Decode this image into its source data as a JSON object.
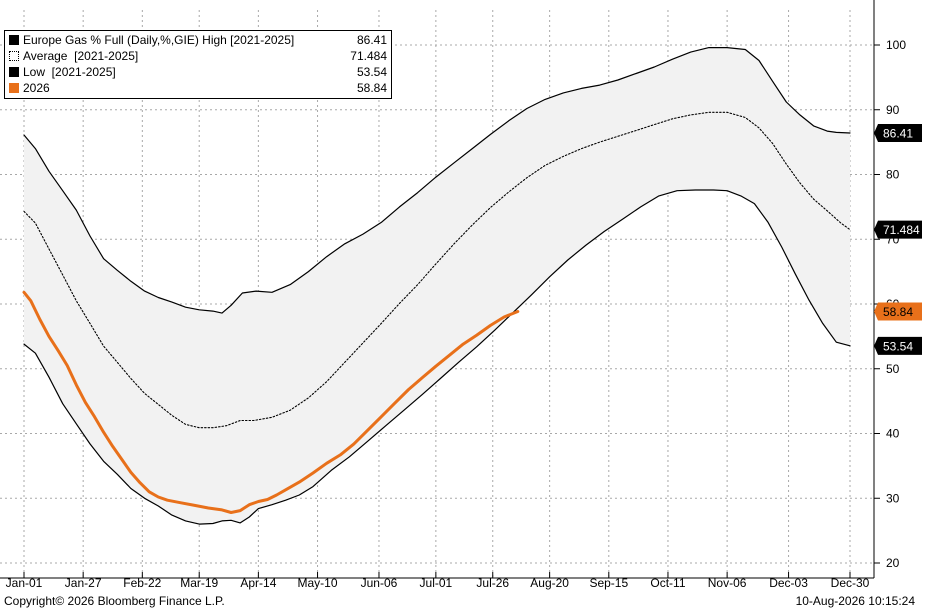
{
  "chart_data": {
    "type": "line",
    "title": "",
    "xlabel": "",
    "ylabel": "",
    "ylim": [
      20,
      102
    ],
    "x_tick_labels": [
      "Jan-01",
      "Jan-27",
      "Feb-22",
      "Mar-19",
      "Apr-14",
      "May-10",
      "Jun-06",
      "Jul-01",
      "Jul-26",
      "Aug-20",
      "Sep-15",
      "Oct-11",
      "Nov-06",
      "Dec-03",
      "Dec-30"
    ],
    "x_tick_days": [
      1,
      27,
      53,
      78,
      104,
      130,
      157,
      182,
      207,
      232,
      258,
      284,
      310,
      337,
      364
    ],
    "y_ticks": [
      20,
      30,
      40,
      50,
      60,
      70,
      80,
      90,
      100
    ],
    "grid": true,
    "legend_position": "top-left",
    "series": [
      {
        "name": "Europe Gas % Full (Daily,%,GIE) High [2021-2025]",
        "last_value": "86.41",
        "color": "#000000",
        "style": "solid",
        "points": [
          [
            1,
            86.1
          ],
          [
            6,
            84
          ],
          [
            12,
            80.5
          ],
          [
            18,
            77.5
          ],
          [
            24,
            74.5
          ],
          [
            30,
            70.5
          ],
          [
            36,
            67
          ],
          [
            42,
            65.2
          ],
          [
            48,
            63.5
          ],
          [
            54,
            62
          ],
          [
            60,
            61
          ],
          [
            66,
            60.3
          ],
          [
            72,
            59.5
          ],
          [
            78,
            59.1
          ],
          [
            84,
            58.9
          ],
          [
            88,
            58.6
          ],
          [
            92,
            59.8
          ],
          [
            97,
            61.7
          ],
          [
            103,
            62
          ],
          [
            110,
            61.8
          ],
          [
            118,
            63
          ],
          [
            126,
            65
          ],
          [
            134,
            67.3
          ],
          [
            142,
            69.3
          ],
          [
            150,
            70.8
          ],
          [
            158,
            72.6
          ],
          [
            166,
            75
          ],
          [
            174,
            77.2
          ],
          [
            182,
            79.6
          ],
          [
            190,
            81.8
          ],
          [
            198,
            84
          ],
          [
            206,
            86.2
          ],
          [
            214,
            88.3
          ],
          [
            222,
            90.2
          ],
          [
            230,
            91.6
          ],
          [
            238,
            92.6
          ],
          [
            246,
            93.3
          ],
          [
            254,
            93.8
          ],
          [
            262,
            94.6
          ],
          [
            270,
            95.6
          ],
          [
            278,
            96.6
          ],
          [
            286,
            97.8
          ],
          [
            294,
            98.9
          ],
          [
            302,
            99.6
          ],
          [
            310,
            99.6
          ],
          [
            318,
            99.3
          ],
          [
            324,
            97.6
          ],
          [
            330,
            94.4
          ],
          [
            336,
            91.2
          ],
          [
            342,
            89.2
          ],
          [
            348,
            87.5
          ],
          [
            354,
            86.7
          ],
          [
            358,
            86.5
          ],
          [
            364,
            86.41
          ]
        ]
      },
      {
        "name": "Average  [2021-2025]",
        "last_value": "71.484",
        "color": "#000000",
        "style": "dotted",
        "points": [
          [
            1,
            74.3
          ],
          [
            6,
            72.5
          ],
          [
            12,
            68.5
          ],
          [
            18,
            64.5
          ],
          [
            24,
            60.5
          ],
          [
            30,
            57
          ],
          [
            36,
            53.5
          ],
          [
            42,
            51
          ],
          [
            48,
            48.5
          ],
          [
            54,
            46.2
          ],
          [
            60,
            44.5
          ],
          [
            66,
            42.8
          ],
          [
            72,
            41.4
          ],
          [
            78,
            40.9
          ],
          [
            84,
            40.9
          ],
          [
            90,
            41.2
          ],
          [
            96,
            42
          ],
          [
            102,
            42
          ],
          [
            110,
            42.5
          ],
          [
            118,
            43.6
          ],
          [
            126,
            45.5
          ],
          [
            134,
            48
          ],
          [
            142,
            51
          ],
          [
            150,
            54
          ],
          [
            158,
            57
          ],
          [
            166,
            60.1
          ],
          [
            174,
            63
          ],
          [
            182,
            66.2
          ],
          [
            190,
            69.3
          ],
          [
            198,
            72.2
          ],
          [
            206,
            74.9
          ],
          [
            214,
            77.3
          ],
          [
            222,
            79.5
          ],
          [
            230,
            81.4
          ],
          [
            238,
            82.8
          ],
          [
            246,
            84
          ],
          [
            254,
            85
          ],
          [
            262,
            85.9
          ],
          [
            270,
            86.8
          ],
          [
            278,
            87.7
          ],
          [
            286,
            88.6
          ],
          [
            294,
            89.2
          ],
          [
            302,
            89.6
          ],
          [
            310,
            89.6
          ],
          [
            318,
            88.8
          ],
          [
            324,
            87.2
          ],
          [
            330,
            84.8
          ],
          [
            336,
            81.6
          ],
          [
            342,
            78.7
          ],
          [
            348,
            76.2
          ],
          [
            354,
            74.4
          ],
          [
            360,
            72.5
          ],
          [
            364,
            71.484
          ]
        ]
      },
      {
        "name": "Low  [2021-2025]",
        "last_value": "53.54",
        "color": "#000000",
        "style": "solid",
        "points": [
          [
            1,
            53.8
          ],
          [
            6,
            52.4
          ],
          [
            12,
            48.7
          ],
          [
            18,
            44.6
          ],
          [
            24,
            41.5
          ],
          [
            30,
            38.4
          ],
          [
            36,
            35.7
          ],
          [
            42,
            33.7
          ],
          [
            48,
            31.5
          ],
          [
            54,
            30
          ],
          [
            60,
            28.8
          ],
          [
            66,
            27.4
          ],
          [
            72,
            26.5
          ],
          [
            78,
            26
          ],
          [
            84,
            26.1
          ],
          [
            88,
            26.5
          ],
          [
            92,
            26.6
          ],
          [
            96,
            26.2
          ],
          [
            100,
            27.1
          ],
          [
            104,
            28.4
          ],
          [
            110,
            29
          ],
          [
            116,
            29.7
          ],
          [
            122,
            30.5
          ],
          [
            128,
            31.8
          ],
          [
            136,
            34.3
          ],
          [
            144,
            36.4
          ],
          [
            152,
            38.8
          ],
          [
            160,
            41.2
          ],
          [
            168,
            43.6
          ],
          [
            176,
            46
          ],
          [
            184,
            48.5
          ],
          [
            192,
            51
          ],
          [
            200,
            53.4
          ],
          [
            208,
            56
          ],
          [
            216,
            58.7
          ],
          [
            224,
            61.4
          ],
          [
            232,
            64.2
          ],
          [
            240,
            66.8
          ],
          [
            248,
            69.1
          ],
          [
            256,
            71.2
          ],
          [
            264,
            73.1
          ],
          [
            272,
            75
          ],
          [
            280,
            76.7
          ],
          [
            288,
            77.5
          ],
          [
            296,
            77.6
          ],
          [
            304,
            77.6
          ],
          [
            310,
            77.5
          ],
          [
            316,
            76.7
          ],
          [
            322,
            75.5
          ],
          [
            328,
            72.6
          ],
          [
            334,
            68.8
          ],
          [
            340,
            64.6
          ],
          [
            346,
            60.6
          ],
          [
            352,
            57
          ],
          [
            358,
            54.1
          ],
          [
            364,
            53.54
          ]
        ]
      },
      {
        "name": "2026",
        "last_value": "58.84",
        "color": "#e8701a",
        "style": "solid",
        "points": [
          [
            1,
            61.8
          ],
          [
            4,
            60.5
          ],
          [
            8,
            57.6
          ],
          [
            12,
            55
          ],
          [
            16,
            52.8
          ],
          [
            20,
            50.5
          ],
          [
            24,
            47.5
          ],
          [
            28,
            44.8
          ],
          [
            32,
            42.6
          ],
          [
            36,
            40.2
          ],
          [
            40,
            38
          ],
          [
            44,
            36
          ],
          [
            48,
            34
          ],
          [
            52,
            32.4
          ],
          [
            56,
            31
          ],
          [
            60,
            30.2
          ],
          [
            64,
            29.7
          ],
          [
            70,
            29.3
          ],
          [
            76,
            28.9
          ],
          [
            82,
            28.5
          ],
          [
            88,
            28.2
          ],
          [
            92,
            27.8
          ],
          [
            96,
            28.1
          ],
          [
            100,
            29
          ],
          [
            104,
            29.5
          ],
          [
            108,
            29.8
          ],
          [
            112,
            30.5
          ],
          [
            116,
            31.3
          ],
          [
            122,
            32.5
          ],
          [
            128,
            33.9
          ],
          [
            134,
            35.4
          ],
          [
            140,
            36.7
          ],
          [
            146,
            38.4
          ],
          [
            152,
            40.5
          ],
          [
            158,
            42.6
          ],
          [
            164,
            44.7
          ],
          [
            170,
            46.8
          ],
          [
            176,
            48.6
          ],
          [
            182,
            50.4
          ],
          [
            188,
            52.1
          ],
          [
            194,
            53.8
          ],
          [
            200,
            55.2
          ],
          [
            206,
            56.7
          ],
          [
            212,
            58
          ],
          [
            218,
            58.84
          ]
        ]
      }
    ]
  },
  "end_labels": [
    {
      "series": 0,
      "text": "86.41",
      "bg": "#000000",
      "color": "#ffffff"
    },
    {
      "series": 1,
      "text": "71.484",
      "bg": "#000000",
      "color": "#ffffff"
    },
    {
      "series": 3,
      "text": "58.84",
      "bg": "#e8701a",
      "color": "#000000"
    },
    {
      "series": 2,
      "text": "53.54",
      "bg": "#000000",
      "color": "#ffffff"
    }
  ],
  "colors": {
    "band_fill": "#f2f2f2",
    "grid": "#a8a8a8",
    "accent": "#e8701a"
  },
  "footer": {
    "copyright": "Copyright© 2026 Bloomberg Finance L.P.",
    "timestamp": "10-Aug-2026 10:15:24"
  }
}
